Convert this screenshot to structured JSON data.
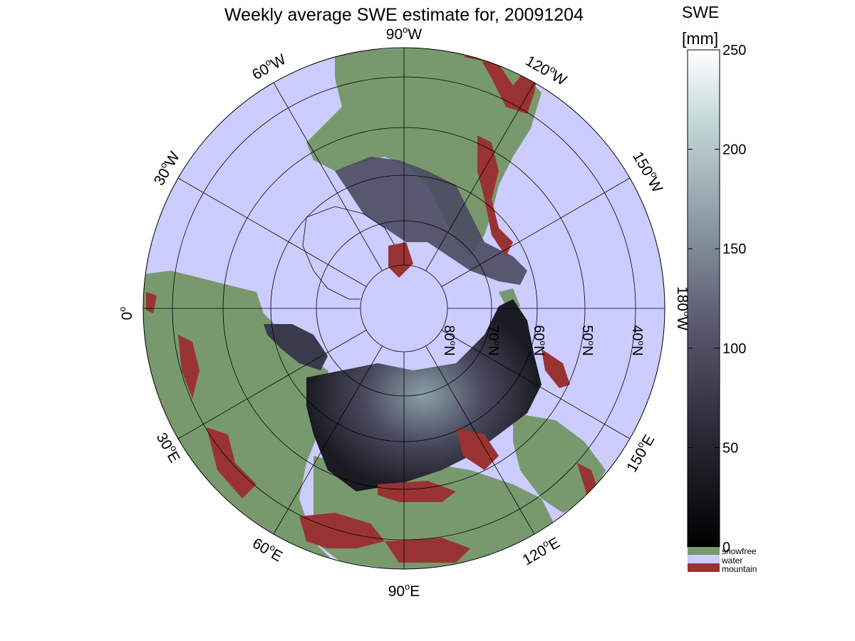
{
  "title": "Weekly average SWE estimate for, 20091204",
  "colorbar": {
    "label_line1": "SWE",
    "label_line2": "[mm]",
    "range": [
      0,
      250
    ],
    "ticks": [
      "0",
      "50",
      "100",
      "150",
      "200",
      "250"
    ],
    "legend": [
      {
        "label": "snowfree",
        "color": "#78996e"
      },
      {
        "label": "water",
        "color": "#ccccff"
      },
      {
        "label": "mountain",
        "color": "#993333"
      }
    ]
  },
  "map": {
    "projection": "north polar stereographic",
    "colors": {
      "water": "#ccccff",
      "snowfree": "#78996e",
      "mountain": "#993333",
      "swe_low": "#101018",
      "swe_mid": "#4a4a60",
      "swe_high": "#8aa0a8"
    },
    "meridian_labels": [
      {
        "text": "90",
        "sup": "o",
        "hemi": "W"
      },
      {
        "text": "60",
        "sup": "o",
        "hemi": "W"
      },
      {
        "text": "30",
        "sup": "o",
        "hemi": "W"
      },
      {
        "text": "120",
        "sup": "o",
        "hemi": "W"
      },
      {
        "text": "150",
        "sup": "o",
        "hemi": "W"
      },
      {
        "text": "180",
        "sup": "o",
        "hemi": "W"
      },
      {
        "text": "0",
        "sup": "o",
        "hemi": ""
      },
      {
        "text": "30",
        "sup": "o",
        "hemi": "E"
      },
      {
        "text": "60",
        "sup": "o",
        "hemi": "E"
      },
      {
        "text": "90",
        "sup": "o",
        "hemi": "E"
      },
      {
        "text": "120",
        "sup": "o",
        "hemi": "E"
      },
      {
        "text": "150",
        "sup": "o",
        "hemi": "E"
      }
    ],
    "parallel_labels": [
      {
        "text": "80",
        "sup": "o",
        "hemi": "N"
      },
      {
        "text": "70",
        "sup": "o",
        "hemi": "N"
      },
      {
        "text": "60",
        "sup": "o",
        "hemi": "N"
      },
      {
        "text": "50",
        "sup": "o",
        "hemi": "N"
      },
      {
        "text": "40",
        "sup": "o",
        "hemi": "N"
      }
    ]
  }
}
